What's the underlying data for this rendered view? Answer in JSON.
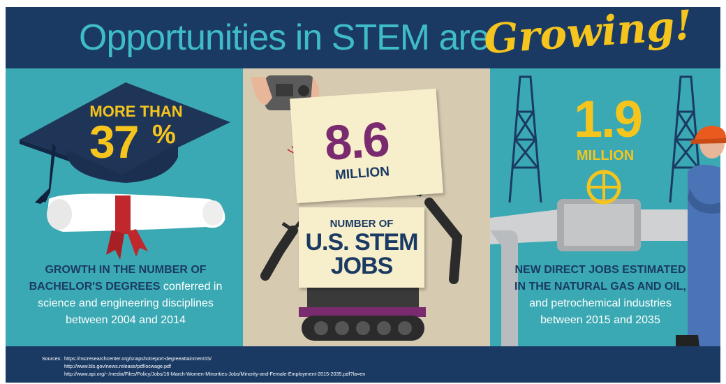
{
  "title": {
    "main": "Opportunities in STEM are",
    "script": "Growing!"
  },
  "panel1": {
    "kicker": "MORE THAN",
    "value": "37",
    "unit": "%",
    "caption_bold_1": "GROWTH IN THE NUMBER OF",
    "caption_bold_2": "BACHELOR'S DEGREES",
    "caption_rest_1": " conferred in",
    "caption_rest_2": "science and engineering disciplines",
    "caption_rest_3": "between 2004 and 2014",
    "icons": [
      "graduation-cap-icon",
      "diploma-scroll-icon"
    ]
  },
  "panel2": {
    "value": "8.6",
    "unit": "MILLION",
    "label_1": "NUMBER OF",
    "label_2": "U.S. STEM",
    "label_3": "JOBS",
    "icons": [
      "remote-controller-icon",
      "robot-icon"
    ]
  },
  "panel3": {
    "value": "1.9",
    "unit": "MILLION",
    "caption_bold_1": "NEW DIRECT JOBS ESTIMATED",
    "caption_bold_2": "IN THE NATURAL GAS AND OIL,",
    "caption_rest_1": "and petrochemical industries",
    "caption_rest_2": "between 2015 and 2035",
    "icons": [
      "oil-derrick-icon",
      "pipeline-valve-icon",
      "worker-icon"
    ]
  },
  "sources": {
    "label": "Sources:",
    "lines": [
      "https://nscresearchcenter.org/snapshotreport-degreeattainment15/",
      "http://www.bls.gov/news.release/pdf/ocwage.pdf",
      "http://www.api.org/~/media/Files/Policy/Jobs/16-March-Women-Minorities-Jobs/Minority-and-Female-Employment-2015-2035.pdf?la=en"
    ]
  },
  "colors": {
    "navy": "#1a3a63",
    "teal": "#3aa9b3",
    "yellow": "#f5c51d",
    "purple": "#7a2a6e",
    "paper": "#f7efcb",
    "tan": "#d6cab0"
  }
}
